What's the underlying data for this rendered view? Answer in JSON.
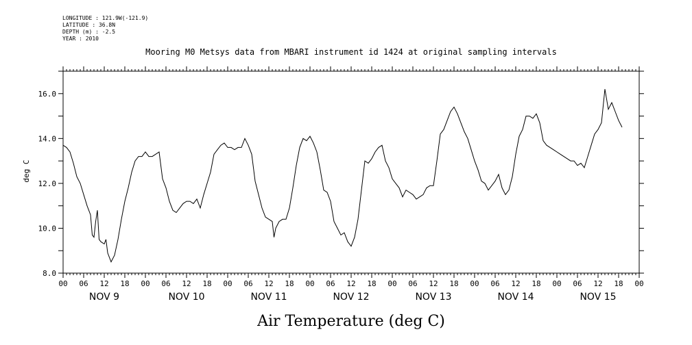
{
  "meta": {
    "longitude": "LONGITUDE : 121.9W(-121.9)",
    "latitude": "LATITUDE : 36.8N",
    "depth": "DEPTH (m) : -2.5",
    "year": "YEAR : 2010"
  },
  "chart_data": {
    "type": "line",
    "title": "Mooring M0 Metsys data from MBARI instrument id 1424 at original sampling intervals",
    "xlabel": "Air Temperature (deg C)",
    "ylabel": "deg C",
    "ylim": [
      8.0,
      17.0
    ],
    "yticks": [
      8.0,
      10.0,
      12.0,
      14.0,
      16.0
    ],
    "ytick_labels": [
      "8.0",
      "10.0",
      "12.0",
      "14.0",
      "16.0"
    ],
    "xlim_hours": [
      0,
      168
    ],
    "hour_tick_labels": [
      "00",
      "06",
      "12",
      "18",
      "00",
      "06",
      "12",
      "18",
      "00",
      "06",
      "12",
      "18",
      "00",
      "06",
      "12",
      "18",
      "00",
      "06",
      "12",
      "18",
      "00",
      "06",
      "12",
      "18",
      "00",
      "06",
      "12",
      "18",
      "00"
    ],
    "day_labels": [
      "NOV  9",
      "NOV 10",
      "NOV 11",
      "NOV 12",
      "NOV 13",
      "NOV 14",
      "NOV 15"
    ],
    "grid": false,
    "series": [
      {
        "points": [
          [
            0,
            13.7
          ],
          [
            1,
            13.6
          ],
          [
            2,
            13.4
          ],
          [
            3,
            12.9
          ],
          [
            4,
            12.3
          ],
          [
            5,
            12.0
          ],
          [
            6,
            11.5
          ],
          [
            7,
            11.0
          ],
          [
            8,
            10.6
          ],
          [
            8.5,
            9.7
          ],
          [
            9,
            9.6
          ],
          [
            9.5,
            10.3
          ],
          [
            10,
            10.8
          ],
          [
            10.5,
            9.5
          ],
          [
            11,
            9.4
          ],
          [
            12,
            9.3
          ],
          [
            12.5,
            9.5
          ],
          [
            13,
            8.9
          ],
          [
            14,
            8.5
          ],
          [
            15,
            8.8
          ],
          [
            16,
            9.5
          ],
          [
            17,
            10.4
          ],
          [
            18,
            11.2
          ],
          [
            19,
            11.8
          ],
          [
            20,
            12.5
          ],
          [
            21,
            13.0
          ],
          [
            22,
            13.2
          ],
          [
            23,
            13.2
          ],
          [
            24,
            13.4
          ],
          [
            25,
            13.2
          ],
          [
            26,
            13.2
          ],
          [
            27,
            13.3
          ],
          [
            28,
            13.4
          ],
          [
            29,
            12.2
          ],
          [
            30,
            11.8
          ],
          [
            31,
            11.2
          ],
          [
            32,
            10.8
          ],
          [
            33,
            10.7
          ],
          [
            34,
            10.9
          ],
          [
            35,
            11.1
          ],
          [
            36,
            11.2
          ],
          [
            37,
            11.2
          ],
          [
            38,
            11.1
          ],
          [
            39,
            11.3
          ],
          [
            40,
            10.9
          ],
          [
            41,
            11.5
          ],
          [
            42,
            12.0
          ],
          [
            43,
            12.5
          ],
          [
            44,
            13.3
          ],
          [
            45,
            13.5
          ],
          [
            46,
            13.7
          ],
          [
            47,
            13.8
          ],
          [
            48,
            13.6
          ],
          [
            49,
            13.6
          ],
          [
            50,
            13.5
          ],
          [
            51,
            13.6
          ],
          [
            52,
            13.6
          ],
          [
            53,
            14.0
          ],
          [
            54,
            13.7
          ],
          [
            55,
            13.3
          ],
          [
            56,
            12.1
          ],
          [
            57,
            11.5
          ],
          [
            58,
            10.9
          ],
          [
            59,
            10.5
          ],
          [
            60,
            10.4
          ],
          [
            61,
            10.3
          ],
          [
            61.5,
            9.6
          ],
          [
            62,
            10.0
          ],
          [
            63,
            10.3
          ],
          [
            64,
            10.4
          ],
          [
            65,
            10.4
          ],
          [
            66,
            10.9
          ],
          [
            67,
            11.8
          ],
          [
            68,
            12.8
          ],
          [
            69,
            13.6
          ],
          [
            70,
            14.0
          ],
          [
            71,
            13.9
          ],
          [
            72,
            14.1
          ],
          [
            73,
            13.8
          ],
          [
            74,
            13.4
          ],
          [
            75,
            12.6
          ],
          [
            76,
            11.7
          ],
          [
            77,
            11.6
          ],
          [
            78,
            11.2
          ],
          [
            79,
            10.3
          ],
          [
            80,
            10.0
          ],
          [
            81,
            9.7
          ],
          [
            82,
            9.8
          ],
          [
            83,
            9.4
          ],
          [
            84,
            9.2
          ],
          [
            85,
            9.6
          ],
          [
            86,
            10.4
          ],
          [
            87,
            11.7
          ],
          [
            88,
            13.0
          ],
          [
            89,
            12.9
          ],
          [
            90,
            13.1
          ],
          [
            91,
            13.4
          ],
          [
            92,
            13.6
          ],
          [
            93,
            13.7
          ],
          [
            94,
            13.0
          ],
          [
            95,
            12.7
          ],
          [
            96,
            12.2
          ],
          [
            97,
            12.0
          ],
          [
            98,
            11.8
          ],
          [
            99,
            11.4
          ],
          [
            100,
            11.7
          ],
          [
            101,
            11.6
          ],
          [
            102,
            11.5
          ],
          [
            103,
            11.3
          ],
          [
            104,
            11.4
          ],
          [
            105,
            11.5
          ],
          [
            106,
            11.8
          ],
          [
            107,
            11.9
          ],
          [
            108,
            11.9
          ],
          [
            109,
            13.0
          ],
          [
            110,
            14.2
          ],
          [
            111,
            14.4
          ],
          [
            112,
            14.8
          ],
          [
            113,
            15.2
          ],
          [
            114,
            15.4
          ],
          [
            115,
            15.1
          ],
          [
            116,
            14.7
          ],
          [
            117,
            14.3
          ],
          [
            118,
            14.0
          ],
          [
            119,
            13.5
          ],
          [
            120,
            13.0
          ],
          [
            121,
            12.6
          ],
          [
            122,
            12.1
          ],
          [
            123,
            12.0
          ],
          [
            124,
            11.7
          ],
          [
            125,
            11.9
          ],
          [
            126,
            12.1
          ],
          [
            127,
            12.4
          ],
          [
            128,
            11.8
          ],
          [
            129,
            11.5
          ],
          [
            130,
            11.7
          ],
          [
            131,
            12.3
          ],
          [
            132,
            13.3
          ],
          [
            133,
            14.1
          ],
          [
            134,
            14.4
          ],
          [
            135,
            15.0
          ],
          [
            136,
            15.0
          ],
          [
            137,
            14.9
          ],
          [
            138,
            15.1
          ],
          [
            139,
            14.7
          ],
          [
            140,
            13.9
          ],
          [
            141,
            13.7
          ],
          [
            142,
            13.6
          ],
          [
            143,
            13.5
          ],
          [
            144,
            13.4
          ],
          [
            145,
            13.3
          ],
          [
            146,
            13.2
          ],
          [
            147,
            13.1
          ],
          [
            148,
            13.0
          ],
          [
            149,
            13.0
          ],
          [
            150,
            12.8
          ],
          [
            151,
            12.9
          ],
          [
            152,
            12.7
          ],
          [
            153,
            13.2
          ],
          [
            154,
            13.7
          ],
          [
            155,
            14.2
          ],
          [
            156,
            14.4
          ],
          [
            157,
            14.7
          ],
          [
            158,
            16.2
          ],
          [
            159,
            15.3
          ],
          [
            160,
            15.6
          ],
          [
            161,
            15.2
          ],
          [
            162,
            14.8
          ],
          [
            163,
            14.5
          ]
        ]
      }
    ]
  }
}
